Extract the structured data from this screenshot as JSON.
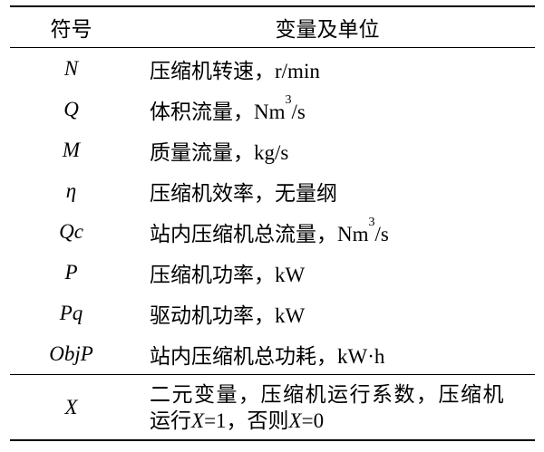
{
  "table": {
    "header": {
      "col1": "符号",
      "col2": "变量及单位"
    },
    "rows": [
      {
        "symbol": "N",
        "desc": "压缩机转速，r/min"
      },
      {
        "symbol": "Q",
        "desc_pre": "体积流量，Nm",
        "desc_sup": "3",
        "desc_post": "/s"
      },
      {
        "symbol": "M",
        "desc": "质量流量，kg/s"
      },
      {
        "symbol": "η",
        "desc": "压缩机效率，无量纲"
      },
      {
        "symbol": "Qc",
        "desc_pre": "站内压缩机总流量，Nm",
        "desc_sup": "3",
        "desc_post": "/s"
      },
      {
        "symbol": "P",
        "desc": "压缩机功率，kW"
      },
      {
        "symbol": "Pq",
        "desc": "驱动机功率，kW"
      },
      {
        "symbol": "ObjP",
        "desc": "站内压缩机总功耗，kW·h"
      },
      {
        "symbol": "X",
        "desc_line1": "二元变量，压缩机运行系数，压缩机",
        "line2_parts": [
          "运行",
          "X",
          "=1，否则",
          "X",
          "=0"
        ]
      }
    ]
  },
  "colors": {
    "line": "#000000",
    "text": "#000000",
    "background": "#ffffff"
  }
}
